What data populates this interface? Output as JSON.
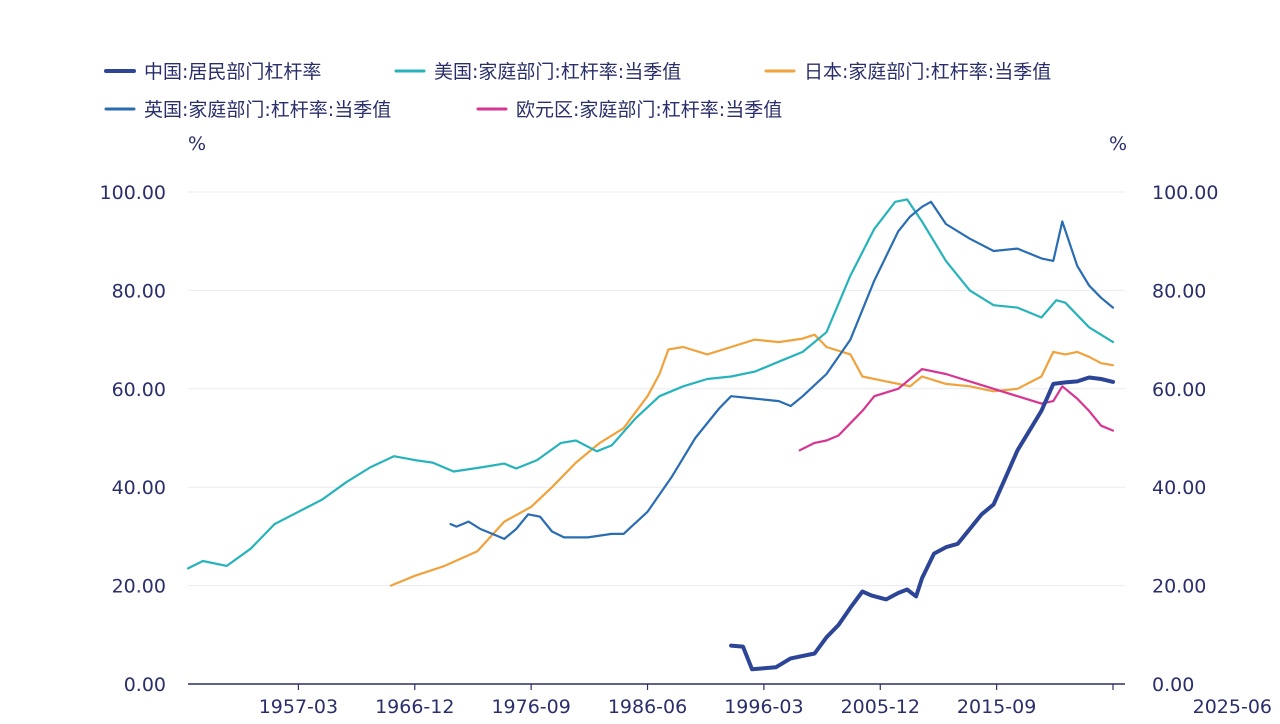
{
  "chart_data": {
    "type": "line",
    "y_unit_left": "%",
    "y_unit_right": "%",
    "ylim": [
      0,
      100
    ],
    "yticks": [
      "0.00",
      "20.00",
      "40.00",
      "60.00",
      "80.00",
      "100.00"
    ],
    "xlim": [
      "1947-12",
      "2025-06"
    ],
    "xticks": [
      "1957-03",
      "1966-12",
      "1976-09",
      "1986-06",
      "1996-03",
      "2005-12",
      "2015-09",
      "2025-06"
    ],
    "grid": "horizontal",
    "legend_position": "top",
    "series": [
      {
        "name": "中国:居民部门杠杆率",
        "color": "#2c4596",
        "points": [
          [
            "1993-06",
            7.8
          ],
          [
            "1994-06",
            7.6
          ],
          [
            "1995-03",
            3.0
          ],
          [
            "1996-03",
            3.2
          ],
          [
            "1997-03",
            3.4
          ],
          [
            "1998-06",
            5.2
          ],
          [
            "2000-06",
            6.2
          ],
          [
            "2001-06",
            9.5
          ],
          [
            "2002-06",
            12.0
          ],
          [
            "2003-06",
            15.5
          ],
          [
            "2004-06",
            18.8
          ],
          [
            "2005-03",
            18.0
          ],
          [
            "2006-06",
            17.2
          ],
          [
            "2007-06",
            18.5
          ],
          [
            "2008-03",
            19.2
          ],
          [
            "2008-12",
            17.8
          ],
          [
            "2009-06",
            21.5
          ],
          [
            "2010-06",
            26.5
          ],
          [
            "2011-06",
            27.8
          ],
          [
            "2012-06",
            28.5
          ],
          [
            "2013-06",
            31.5
          ],
          [
            "2014-06",
            34.5
          ],
          [
            "2015-06",
            36.5
          ],
          [
            "2016-06",
            42.0
          ],
          [
            "2017-06",
            47.5
          ],
          [
            "2018-06",
            51.5
          ],
          [
            "2019-06",
            55.5
          ],
          [
            "2020-06",
            61.0
          ],
          [
            "2021-06",
            61.3
          ],
          [
            "2022-06",
            61.5
          ],
          [
            "2023-06",
            62.3
          ],
          [
            "2024-06",
            62.0
          ],
          [
            "2025-06",
            61.4
          ]
        ]
      },
      {
        "name": "美国:家庭部门:杠杆率:当季值",
        "color": "#27b3bb",
        "points": [
          [
            "1947-12",
            23.5
          ],
          [
            "1949-03",
            25.0
          ],
          [
            "1951-03",
            24.0
          ],
          [
            "1953-03",
            27.5
          ],
          [
            "1955-03",
            32.5
          ],
          [
            "1957-03",
            35.0
          ],
          [
            "1959-03",
            37.5
          ],
          [
            "1961-03",
            41.0
          ],
          [
            "1963-03",
            44.0
          ],
          [
            "1965-03",
            46.3
          ],
          [
            "1966-12",
            45.5
          ],
          [
            "1968-06",
            45.0
          ],
          [
            "1970-03",
            43.2
          ],
          [
            "1972-06",
            44.0
          ],
          [
            "1974-06",
            44.8
          ],
          [
            "1975-06",
            43.8
          ],
          [
            "1977-03",
            45.5
          ],
          [
            "1979-03",
            49.0
          ],
          [
            "1980-06",
            49.5
          ],
          [
            "1982-03",
            47.3
          ],
          [
            "1983-06",
            48.5
          ],
          [
            "1985-06",
            54.0
          ],
          [
            "1987-06",
            58.5
          ],
          [
            "1989-06",
            60.5
          ],
          [
            "1991-06",
            62.0
          ],
          [
            "1993-06",
            62.5
          ],
          [
            "1995-06",
            63.5
          ],
          [
            "1997-06",
            65.5
          ],
          [
            "1999-06",
            67.5
          ],
          [
            "2001-06",
            71.5
          ],
          [
            "2003-06",
            83.0
          ],
          [
            "2005-06",
            92.5
          ],
          [
            "2007-03",
            98.0
          ],
          [
            "2008-03",
            98.5
          ],
          [
            "2009-06",
            94.0
          ],
          [
            "2011-06",
            86.0
          ],
          [
            "2013-06",
            80.0
          ],
          [
            "2015-06",
            77.0
          ],
          [
            "2017-06",
            76.5
          ],
          [
            "2019-06",
            74.5
          ],
          [
            "2020-09",
            78.0
          ],
          [
            "2021-06",
            77.5
          ],
          [
            "2023-06",
            72.5
          ],
          [
            "2025-06",
            69.5
          ]
        ]
      },
      {
        "name": "日本:家庭部门:杠杆率:当季值",
        "color": "#f0a23c",
        "points": [
          [
            "1964-12",
            20.0
          ],
          [
            "1966-12",
            22.0
          ],
          [
            "1969-06",
            24.0
          ],
          [
            "1972-03",
            27.0
          ],
          [
            "1974-06",
            33.0
          ],
          [
            "1976-09",
            36.0
          ],
          [
            "1978-06",
            40.0
          ],
          [
            "1980-06",
            45.0
          ],
          [
            "1982-06",
            49.0
          ],
          [
            "1984-06",
            52.0
          ],
          [
            "1986-06",
            58.5
          ],
          [
            "1987-06",
            63.0
          ],
          [
            "1988-03",
            68.0
          ],
          [
            "1989-06",
            68.5
          ],
          [
            "1991-06",
            67.0
          ],
          [
            "1993-06",
            68.5
          ],
          [
            "1995-06",
            70.0
          ],
          [
            "1997-06",
            69.5
          ],
          [
            "1999-06",
            70.2
          ],
          [
            "2000-06",
            71.0
          ],
          [
            "2001-06",
            68.5
          ],
          [
            "2003-06",
            67.0
          ],
          [
            "2004-06",
            62.5
          ],
          [
            "2006-06",
            61.5
          ],
          [
            "2008-06",
            60.5
          ],
          [
            "2009-06",
            62.5
          ],
          [
            "2011-06",
            61.0
          ],
          [
            "2013-06",
            60.5
          ],
          [
            "2015-06",
            59.5
          ],
          [
            "2017-06",
            60.0
          ],
          [
            "2019-06",
            62.5
          ],
          [
            "2020-06",
            67.5
          ],
          [
            "2021-06",
            67.0
          ],
          [
            "2022-06",
            67.5
          ],
          [
            "2023-06",
            66.5
          ],
          [
            "2024-06",
            65.2
          ],
          [
            "2025-06",
            64.8
          ]
        ]
      },
      {
        "name": "英国:家庭部门:杠杆率:当季值",
        "color": "#2a6db3",
        "points": [
          [
            "1969-12",
            32.5
          ],
          [
            "1970-06",
            32.0
          ],
          [
            "1971-06",
            33.0
          ],
          [
            "1972-06",
            31.5
          ],
          [
            "1973-06",
            30.5
          ],
          [
            "1974-06",
            29.5
          ],
          [
            "1975-06",
            31.5
          ],
          [
            "1976-06",
            34.5
          ],
          [
            "1977-06",
            34.0
          ],
          [
            "1978-06",
            31.0
          ],
          [
            "1979-06",
            29.8
          ],
          [
            "1981-06",
            29.8
          ],
          [
            "1983-06",
            30.5
          ],
          [
            "1984-06",
            30.5
          ],
          [
            "1986-06",
            35.0
          ],
          [
            "1988-06",
            42.0
          ],
          [
            "1990-06",
            50.0
          ],
          [
            "1992-06",
            56.0
          ],
          [
            "1993-06",
            58.5
          ],
          [
            "1995-06",
            58.0
          ],
          [
            "1997-06",
            57.5
          ],
          [
            "1998-06",
            56.5
          ],
          [
            "1999-06",
            58.5
          ],
          [
            "2001-06",
            63.0
          ],
          [
            "2003-06",
            70.0
          ],
          [
            "2005-06",
            82.0
          ],
          [
            "2007-06",
            92.0
          ],
          [
            "2008-06",
            95.0
          ],
          [
            "2009-06",
            97.0
          ],
          [
            "2010-03",
            98.0
          ],
          [
            "2011-06",
            93.5
          ],
          [
            "2013-06",
            90.5
          ],
          [
            "2015-06",
            88.0
          ],
          [
            "2017-06",
            88.5
          ],
          [
            "2019-06",
            86.5
          ],
          [
            "2020-06",
            86.0
          ],
          [
            "2021-03",
            94.0
          ],
          [
            "2022-06",
            85.0
          ],
          [
            "2023-06",
            81.0
          ],
          [
            "2024-06",
            78.5
          ],
          [
            "2025-06",
            76.5
          ]
        ]
      },
      {
        "name": "欧元区:家庭部门:杠杆率:当季值",
        "color": "#d63591",
        "points": [
          [
            "1999-03",
            47.5
          ],
          [
            "2000-06",
            49.0
          ],
          [
            "2001-06",
            49.5
          ],
          [
            "2002-06",
            50.5
          ],
          [
            "2003-06",
            53.0
          ],
          [
            "2004-06",
            55.5
          ],
          [
            "2005-06",
            58.5
          ],
          [
            "2007-06",
            60.0
          ],
          [
            "2009-06",
            64.0
          ],
          [
            "2011-06",
            63.0
          ],
          [
            "2013-06",
            61.5
          ],
          [
            "2015-06",
            60.0
          ],
          [
            "2017-06",
            58.5
          ],
          [
            "2019-06",
            57.0
          ],
          [
            "2020-06",
            57.5
          ],
          [
            "2021-03",
            60.5
          ],
          [
            "2022-06",
            58.0
          ],
          [
            "2023-06",
            55.5
          ],
          [
            "2024-06",
            52.5
          ],
          [
            "2025-06",
            51.5
          ]
        ]
      }
    ]
  }
}
